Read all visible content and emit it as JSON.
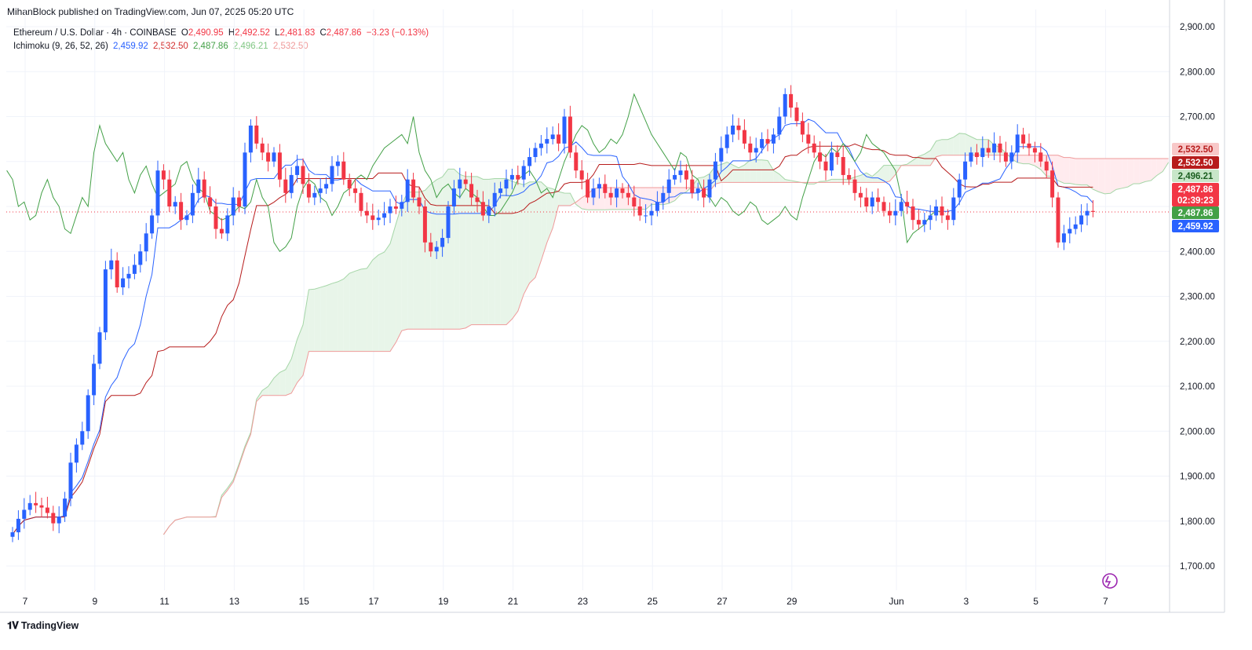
{
  "header": {
    "published": "MihanBlock published on TradingView.com, Jun 07, 2025 05:20 UTC"
  },
  "legend": {
    "symbol": "Ethereum / U.S. Dollar · 4h · COINBASE",
    "o_label": "O",
    "o_value": "2,490.95",
    "h_label": "H",
    "h_value": "2,492.52",
    "l_label": "L",
    "l_value": "2,481.83",
    "c_label": "C",
    "c_value": "2,487.86",
    "change": "−3.23 (−0.13%)",
    "indicator": "Ichimoku (9, 26, 52, 26)",
    "ich_conversion": "2,459.92",
    "ich_base": "2,532.50",
    "ich_lagging": "2,487.86",
    "ich_spanA": "2,496.21",
    "ich_spanB": "2,532.50"
  },
  "footer": {
    "brand": "TradingView"
  },
  "colors": {
    "up": "#2962ff",
    "down": "#f23645",
    "conversion": "#2962ff",
    "base": "#b71c1c",
    "lagging": "#43a047",
    "spanA": "#a5d6a7",
    "spanB": "#ef9a9a",
    "cloud_bull": "#e8f5e9",
    "cloud_bear": "#ffebee"
  },
  "chart_data": {
    "type": "candlestick",
    "symbol": "ETHUSD",
    "interval": "4h",
    "ylim": [
      1650,
      2920
    ],
    "y_ticks": [
      "2,900.00",
      "2,800.00",
      "2,700.00",
      "2,600.00",
      "2,500.00",
      "2,400.00",
      "2,300.00",
      "2,200.00",
      "2,100.00",
      "2,000.00",
      "1,900.00",
      "1,800.00",
      "1,700.00"
    ],
    "y_tick_values": [
      2900,
      2800,
      2700,
      2600,
      2500,
      2400,
      2300,
      2200,
      2100,
      2000,
      1900,
      1800,
      1700
    ],
    "x_ticks": [
      {
        "label": "7",
        "bar": 0
      },
      {
        "label": "9",
        "bar": 12
      },
      {
        "label": "11",
        "bar": 24
      },
      {
        "label": "13",
        "bar": 36
      },
      {
        "label": "15",
        "bar": 48
      },
      {
        "label": "17",
        "bar": 60
      },
      {
        "label": "19",
        "bar": 72
      },
      {
        "label": "21",
        "bar": 84
      },
      {
        "label": "23",
        "bar": 96
      },
      {
        "label": "25",
        "bar": 108
      },
      {
        "label": "27",
        "bar": 120
      },
      {
        "label": "29",
        "bar": 132
      },
      {
        "label": "Jun",
        "bar": 150
      },
      {
        "label": "3",
        "bar": 162
      },
      {
        "label": "5",
        "bar": 174
      },
      {
        "label": "7",
        "bar": 186
      }
    ],
    "price_labels": [
      {
        "text": "2,532.50",
        "value": 2532.5,
        "bg": "#f8c8c8",
        "fg": "#b71c1c"
      },
      {
        "text": "2,532.50",
        "value": 2532.5,
        "bg": "#b71c1c",
        "fg": "#ffffff"
      },
      {
        "text": "2,496.21",
        "value": 2496.21,
        "bg": "#c8e6c9",
        "fg": "#1b5e20"
      },
      {
        "text": "2,487.86",
        "value": 2487.86,
        "bg": "#f23645",
        "fg": "#ffffff"
      },
      {
        "text": "02:39:23",
        "value": 2487.86,
        "bg": "#f23645",
        "fg": "#ffffff"
      },
      {
        "text": "2,487.86",
        "value": 2487.86,
        "bg": "#43a047",
        "fg": "#ffffff"
      },
      {
        "text": "2,459.92",
        "value": 2459.92,
        "bg": "#2962ff",
        "fg": "#ffffff"
      }
    ],
    "last_price": 2487.86,
    "closes": [
      1775,
      1805,
      1825,
      1840,
      1835,
      1830,
      1818,
      1795,
      1810,
      1850,
      1930,
      1970,
      2000,
      2080,
      2150,
      2220,
      2360,
      2380,
      2320,
      2340,
      2350,
      2370,
      2400,
      2440,
      2480,
      2580,
      2560,
      2500,
      2510,
      2470,
      2480,
      2530,
      2560,
      2520,
      2500,
      2450,
      2440,
      2480,
      2520,
      2500,
      2620,
      2680,
      2640,
      2620,
      2600,
      2620,
      2560,
      2530,
      2570,
      2590,
      2550,
      2520,
      2530,
      2540,
      2550,
      2590,
      2600,
      2560,
      2540,
      2530,
      2490,
      2480,
      2470,
      2475,
      2485,
      2500,
      2495,
      2510,
      2560,
      2520,
      2500,
      2420,
      2400,
      2410,
      2430,
      2500,
      2540,
      2560,
      2550,
      2520,
      2510,
      2480,
      2500,
      2530,
      2540,
      2560,
      2570,
      2560,
      2590,
      2610,
      2630,
      2640,
      2650,
      2660,
      2640,
      2700,
      2620,
      2580,
      2560,
      2520,
      2540,
      2550,
      2530,
      2520,
      2540,
      2530,
      2520,
      2500,
      2480,
      2480,
      2490,
      2510,
      2530,
      2560,
      2570,
      2580,
      2560,
      2530,
      2540,
      2520,
      2560,
      2600,
      2630,
      2660,
      2680,
      2670,
      2640,
      2620,
      2630,
      2650,
      2640,
      2660,
      2700,
      2750,
      2720,
      2690,
      2660,
      2640,
      2620,
      2600,
      2580,
      2620,
      2610,
      2570,
      2560,
      2530,
      2520,
      2500,
      2520,
      2510,
      2490,
      2480,
      2490,
      2510,
      2500,
      2470,
      2460,
      2470,
      2480,
      2500,
      2480,
      2470,
      2520,
      2560,
      2600,
      2620,
      2610,
      2630,
      2620,
      2640,
      2620,
      2600,
      2620,
      2660,
      2640,
      2630,
      2620,
      2600,
      2580,
      2520,
      2420,
      2440,
      2450,
      2460,
      2480,
      2490,
      2487.86
    ],
    "ichimoku": {
      "conversion_last": 2459.92,
      "base_last": 2532.5,
      "lagging_last": 2487.86,
      "spanA_last": 2496.21,
      "spanB_last": 2532.5,
      "displacement": 26
    }
  }
}
